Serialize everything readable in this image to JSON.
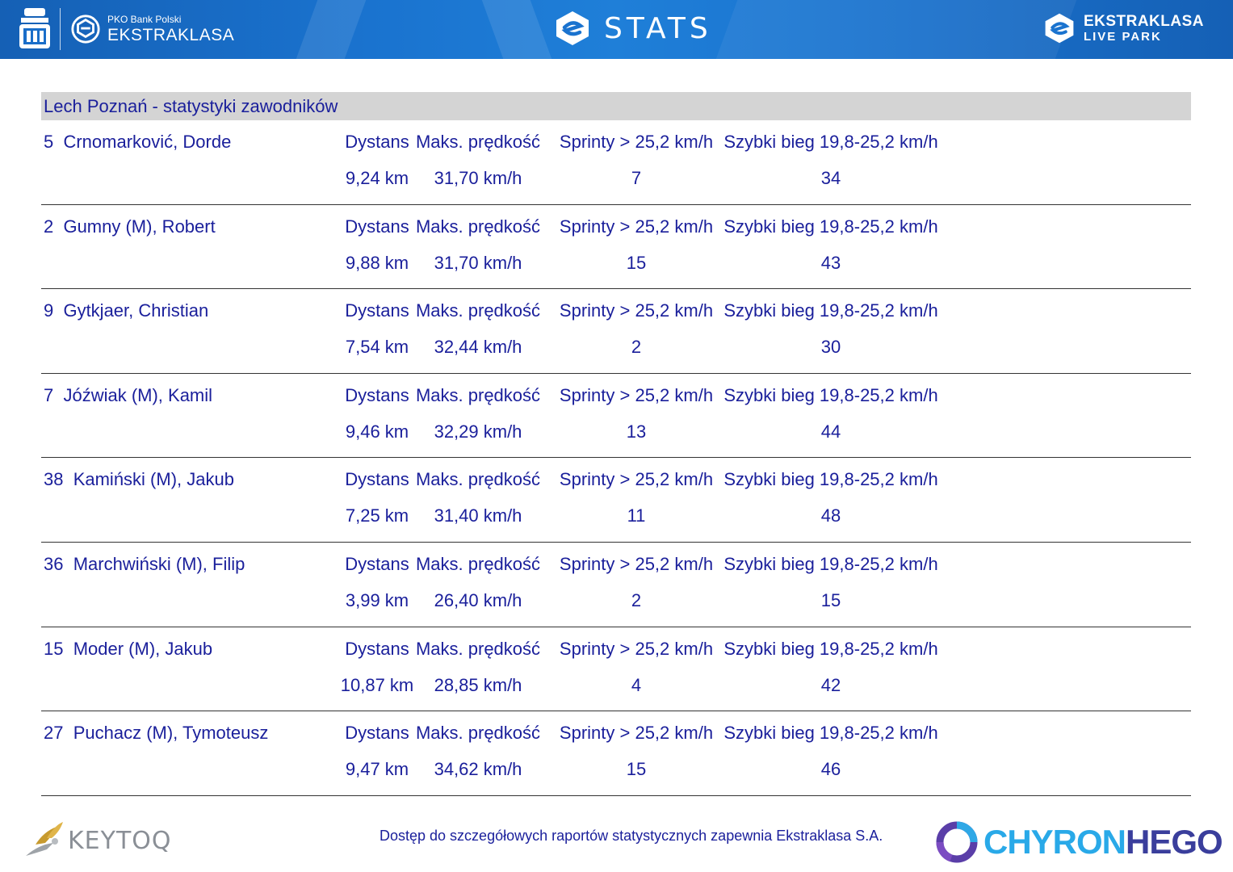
{
  "header": {
    "bank_sub": "PKO Bank Polski",
    "bank_main": "EKSTRAKLASA",
    "stats_title": "STATS",
    "right_line1": "EKSTRAKLASA",
    "right_line2": "LIVE PARK"
  },
  "team_title": "Lech Poznań - statystyki zawodników",
  "column_labels": [
    "Dystans",
    "Maks. prędkość",
    "Sprinty > 25,2 km/h",
    "Szybki bieg 19,8-25,2 km/h"
  ],
  "players": [
    {
      "name": "5  Crnomarković, Dorde",
      "distance": "9,24 km",
      "max_speed": "31,70 km/h",
      "sprints": "7",
      "fast_runs": "34"
    },
    {
      "name": "2  Gumny (M), Robert",
      "distance": "9,88 km",
      "max_speed": "31,70 km/h",
      "sprints": "15",
      "fast_runs": "43"
    },
    {
      "name": "9  Gytkjaer, Christian",
      "distance": "7,54 km",
      "max_speed": "32,44 km/h",
      "sprints": "2",
      "fast_runs": "30"
    },
    {
      "name": "7  Jóźwiak (M), Kamil",
      "distance": "9,46 km",
      "max_speed": "32,29 km/h",
      "sprints": "13",
      "fast_runs": "44"
    },
    {
      "name": "38  Kamiński (M), Jakub",
      "distance": "7,25 km",
      "max_speed": "31,40 km/h",
      "sprints": "11",
      "fast_runs": "48"
    },
    {
      "name": "36  Marchwiński (M), Filip",
      "distance": "3,99 km",
      "max_speed": "26,40 km/h",
      "sprints": "2",
      "fast_runs": "15"
    },
    {
      "name": "15  Moder (M), Jakub",
      "distance": "10,87 km",
      "max_speed": "28,85 km/h",
      "sprints": "4",
      "fast_runs": "42"
    },
    {
      "name": "27  Puchacz (M), Tymoteusz",
      "distance": "9,47 km",
      "max_speed": "34,62 km/h",
      "sprints": "15",
      "fast_runs": "46"
    }
  ],
  "footer": {
    "note": "Dostęp do szczegółowych raportów statystycznych zapewnia Ekstraklasa S.A.",
    "left_logo": "KEYTOQ",
    "right_logo_a": "CHYRON",
    "right_logo_b": "HEGO"
  },
  "colors": {
    "header_blue": "#1a73cf",
    "text_blue": "#1a1f9b",
    "title_bar": "#d4d4d4"
  }
}
